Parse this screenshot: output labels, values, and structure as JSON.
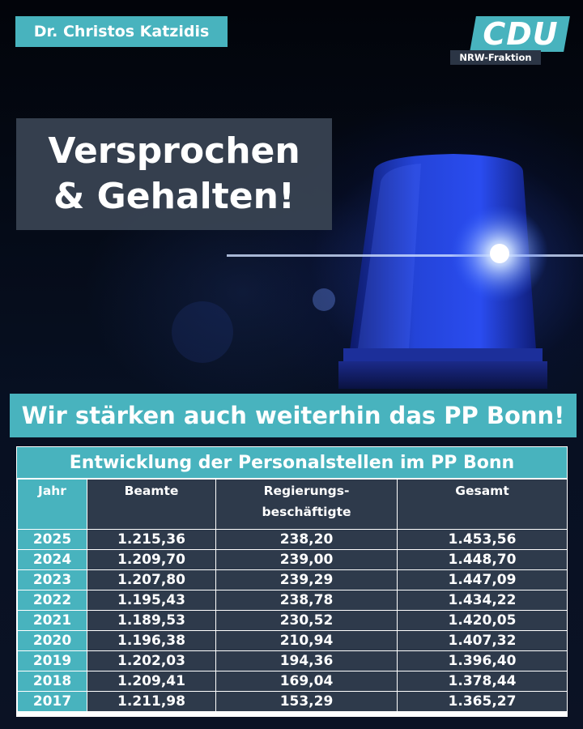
{
  "author": "Dr. Christos Katzidis",
  "logo": {
    "text": "CDU",
    "subtitle": "NRW-Fraktion"
  },
  "headline": {
    "line1": "Versprochen",
    "line2": "& Gehalten!"
  },
  "banner": "Wir stärken auch weiterhin das PP Bonn!",
  "table": {
    "title": "Entwicklung der Personalstellen im PP Bonn",
    "headers": {
      "year": "Jahr",
      "officials": "Beamte",
      "employees_line1": "Regierungs-",
      "employees_line2": "beschäftigte",
      "total": "Gesamt"
    },
    "rows": [
      {
        "year": "2025",
        "officials": "1.215,36",
        "employees": "238,20",
        "total": "1.453,56"
      },
      {
        "year": "2024",
        "officials": "1.209,70",
        "employees": "239,00",
        "total": "1.448,70"
      },
      {
        "year": "2023",
        "officials": "1.207,80",
        "employees": "239,29",
        "total": "1.447,09"
      },
      {
        "year": "2022",
        "officials": "1.195,43",
        "employees": "238,78",
        "total": "1.434,22"
      },
      {
        "year": "2021",
        "officials": "1.189,53",
        "employees": "230,52",
        "total": "1.420,05"
      },
      {
        "year": "2020",
        "officials": "1.196,38",
        "employees": "210,94",
        "total": "1.407,32"
      },
      {
        "year": "2019",
        "officials": "1.202,03",
        "employees": "194,36",
        "total": "1.396,40"
      },
      {
        "year": "2018",
        "officials": "1.209,41",
        "employees": "169,04",
        "total": "1.378,44"
      },
      {
        "year": "2017",
        "officials": "1.211,98",
        "employees": "153,29",
        "total": "1.365,27"
      }
    ]
  },
  "colors": {
    "accent": "#48b3be",
    "panel": "#2e3a4b",
    "beacon": "#1f3fd6"
  },
  "icons": {
    "background": "police-blue-light-icon"
  }
}
